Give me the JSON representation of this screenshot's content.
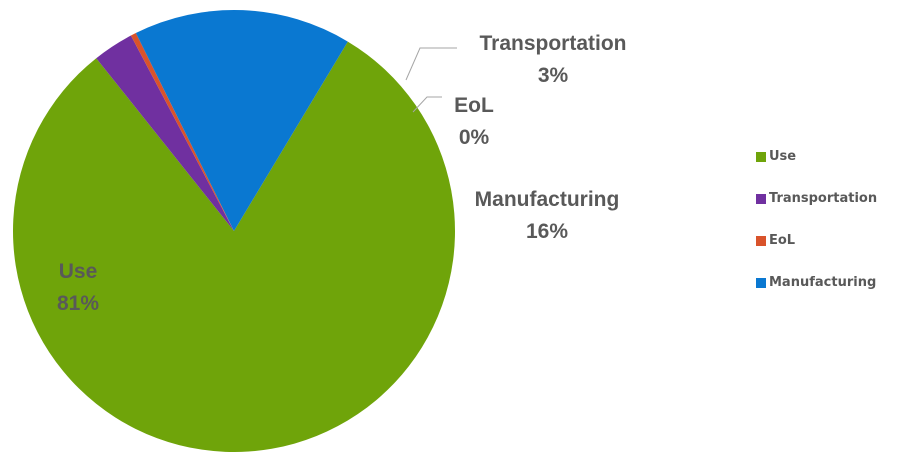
{
  "chart_data": {
    "type": "pie",
    "categories": [
      "Use",
      "Transportation",
      "EoL",
      "Manufacturing"
    ],
    "values": [
      81,
      3,
      0.4,
      16
    ],
    "value_labels": [
      "81%",
      "3%",
      "0%",
      "16%"
    ],
    "colors": [
      "#6fa40a",
      "#7030a0",
      "#d9532b",
      "#0a78d1"
    ],
    "title": "",
    "legend": {
      "position": "right",
      "entries": [
        "Use",
        "Transportation",
        "EoL",
        "Manufacturing"
      ]
    }
  }
}
